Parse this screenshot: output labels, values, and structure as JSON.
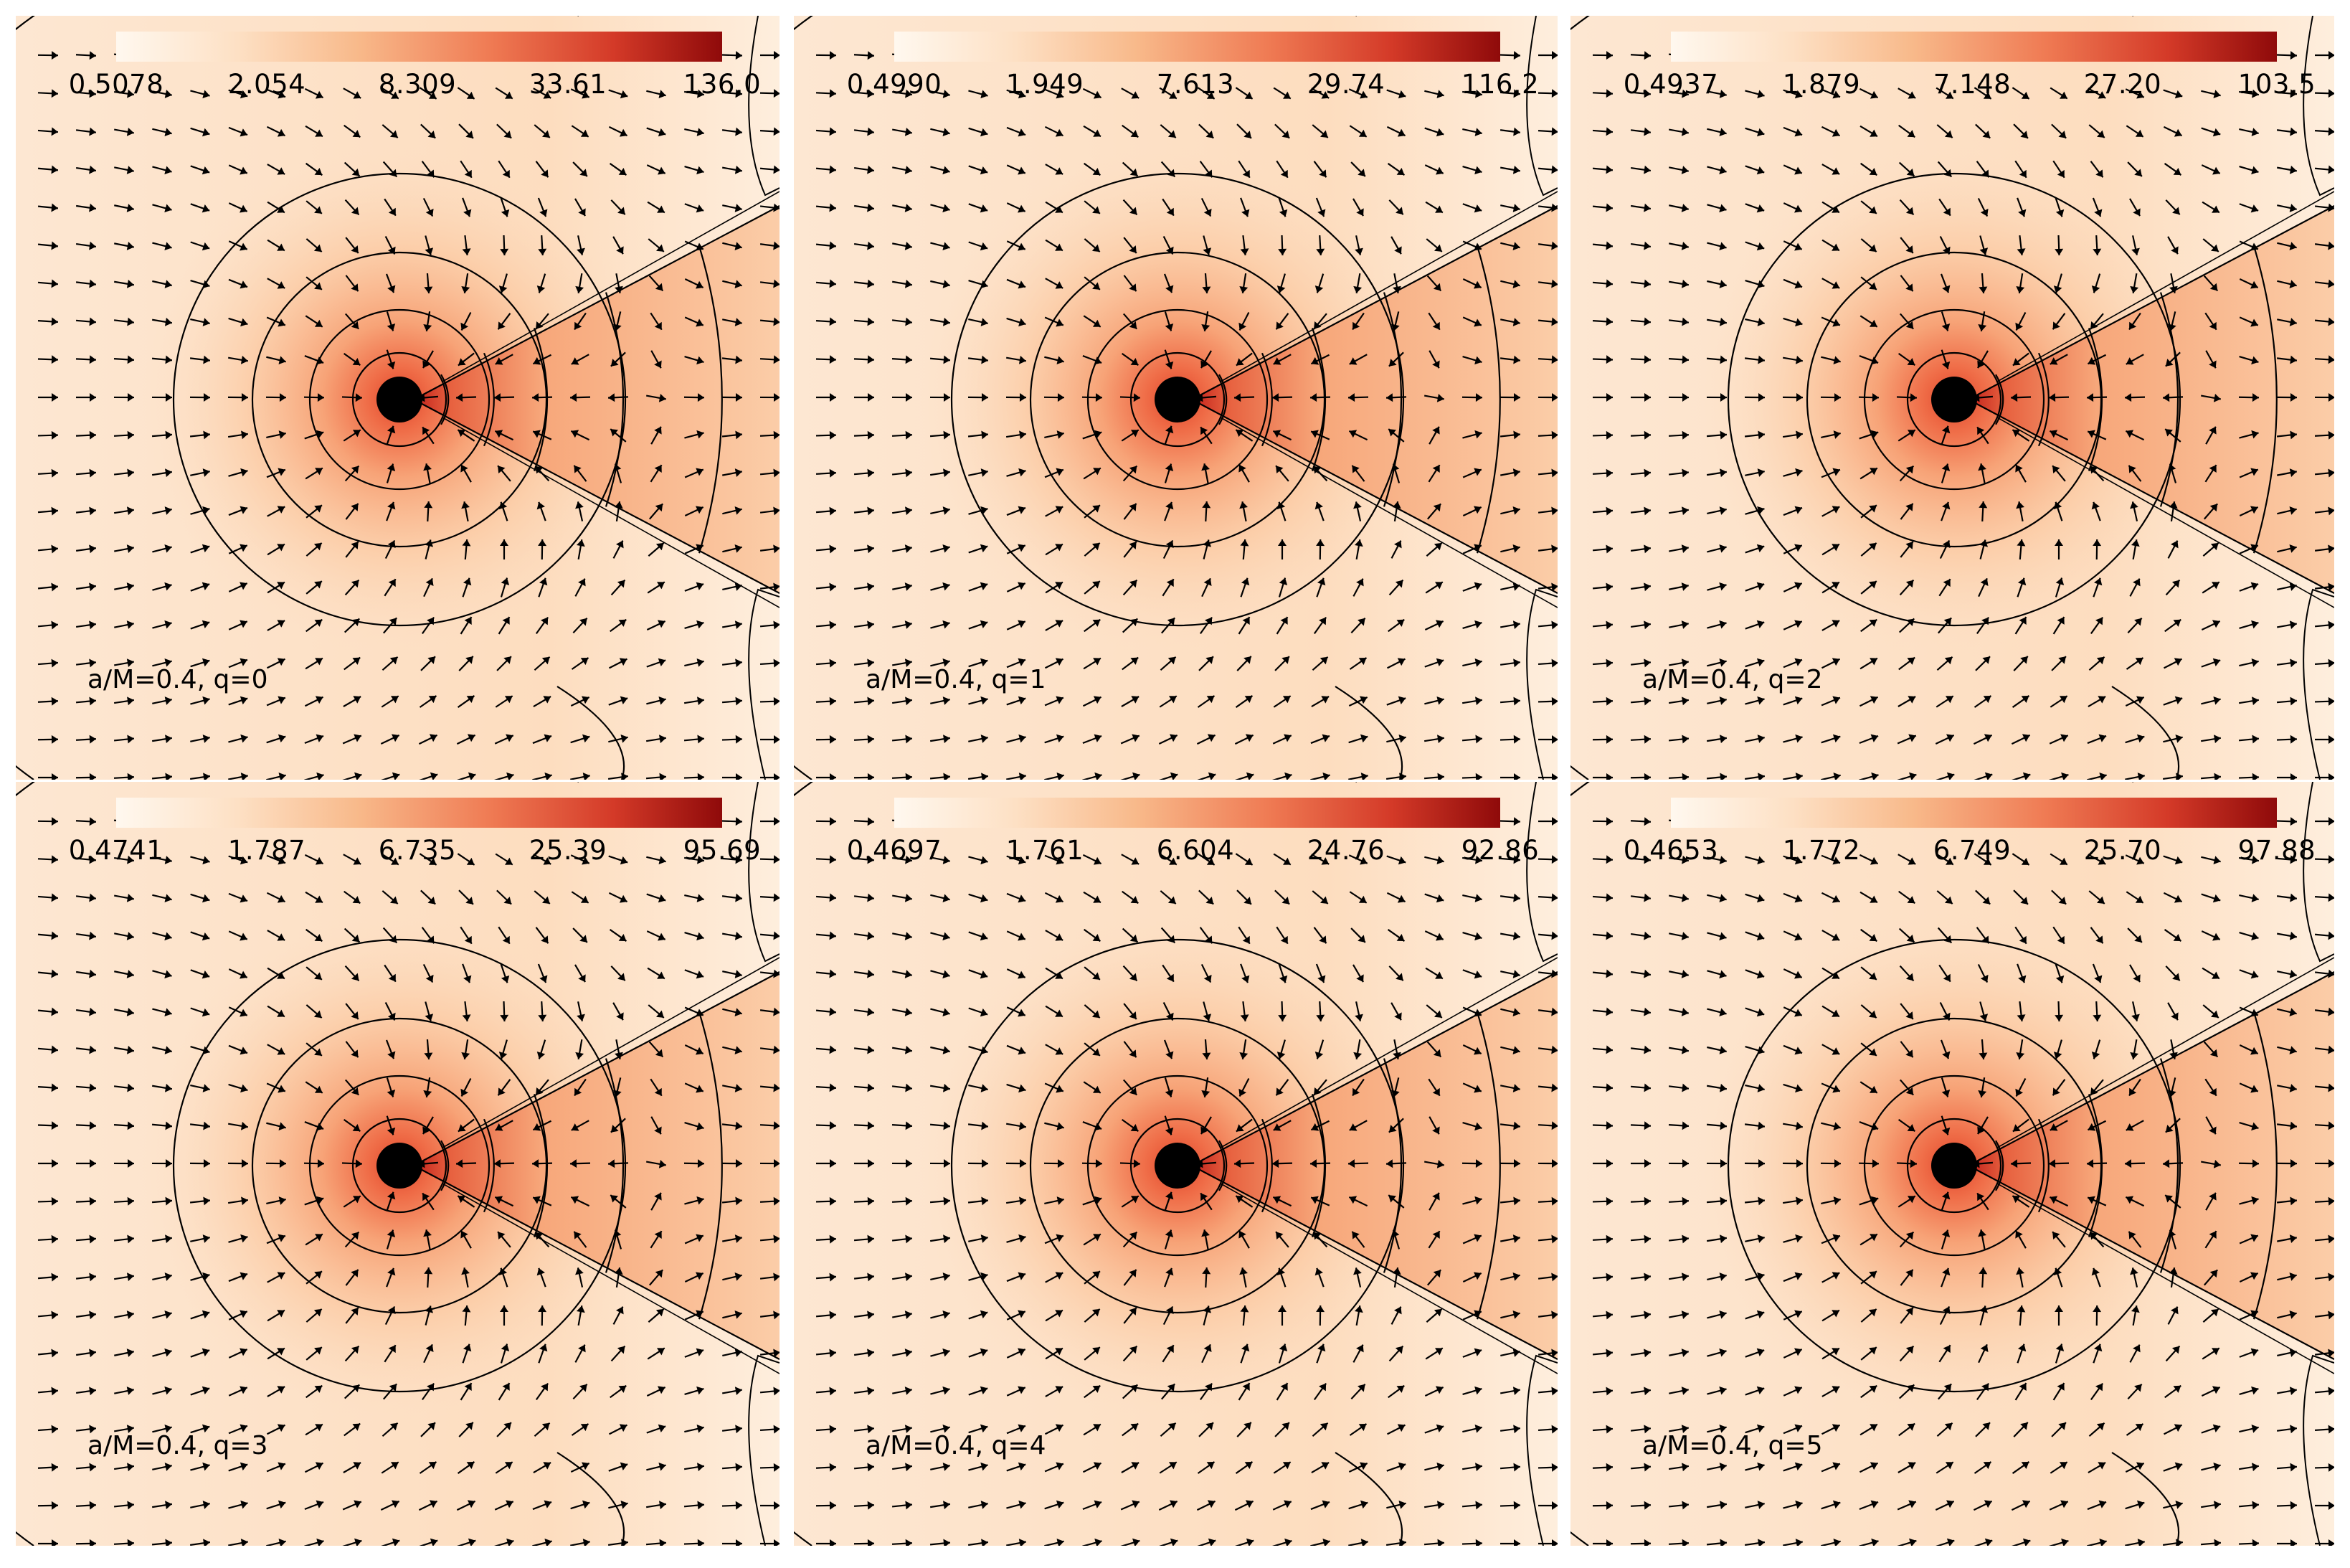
{
  "chart_data": [
    {
      "type": "heatmap",
      "label": "a/M=0.4,  q=0",
      "colorbar_ticks": [
        "0.5078",
        "2.054",
        "8.309",
        "33.61",
        "136.0"
      ]
    },
    {
      "type": "heatmap",
      "label": "a/M=0.4,  q=1",
      "colorbar_ticks": [
        "0.4990",
        "1.949",
        "7.613",
        "29.74",
        "116.2"
      ]
    },
    {
      "type": "heatmap",
      "label": "a/M=0.4,  q=2",
      "colorbar_ticks": [
        "0.4937",
        "1.879",
        "7.148",
        "27.20",
        "103.5"
      ]
    },
    {
      "type": "heatmap",
      "label": "a/M=0.4,  q=3",
      "colorbar_ticks": [
        "0.4741",
        "1.787",
        "6.735",
        "25.39",
        "95.69"
      ]
    },
    {
      "type": "heatmap",
      "label": "a/M=0.4,  q=4",
      "colorbar_ticks": [
        "0.4697",
        "1.761",
        "6.604",
        "24.76",
        "92.86"
      ]
    },
    {
      "type": "heatmap",
      "label": "a/M=0.4,  q=5",
      "colorbar_ticks": [
        "0.4653",
        "1.772",
        "6.749",
        "25.70",
        "97.88"
      ]
    }
  ],
  "colors": {
    "colorbar_low": "#fff8ef",
    "colorbar_high": "#8f0a0a",
    "background": "#fde6cf",
    "contour": "#000000",
    "arrow": "#000000"
  }
}
